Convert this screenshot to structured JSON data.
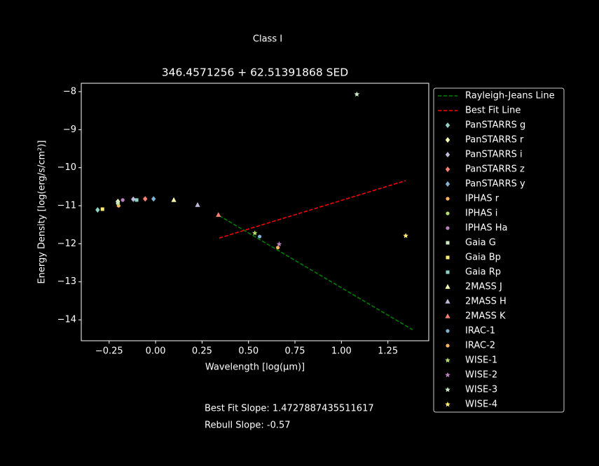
{
  "chart_data": {
    "type": "scatter",
    "suptitle": "Class I",
    "title": "346.4571256 + 62.51391868 SED",
    "x_label": "Wavelength [log(μm)]",
    "y_label": "Energy Density [log(erg/s/cm²)]",
    "annotations": [
      "Best Fit Slope: 1.4727887435511617",
      "Rebull Slope: -0.57"
    ],
    "xlim": [
      -0.4,
      1.47
    ],
    "ylim": [
      -14.55,
      -7.78
    ],
    "xticks": [
      {
        "value": -0.25,
        "label": "−0.25"
      },
      {
        "value": 0,
        "label": "0.00"
      },
      {
        "value": 0.25,
        "label": "0.25"
      },
      {
        "value": 0.5,
        "label": "0.50"
      },
      {
        "value": 0.75,
        "label": "0.75"
      },
      {
        "value": 1,
        "label": "1.00"
      },
      {
        "value": 1.25,
        "label": "1.25"
      }
    ],
    "yticks": [
      {
        "value": -14,
        "label": "−14"
      },
      {
        "value": -13,
        "label": "−13"
      },
      {
        "value": -12,
        "label": "−12"
      },
      {
        "value": -11,
        "label": "−11"
      },
      {
        "value": -10,
        "label": "−10"
      },
      {
        "value": -9,
        "label": "−9"
      },
      {
        "value": -8,
        "label": "−8"
      }
    ],
    "legend": "outside-right",
    "series": [
      {
        "name": "Rayleigh-Jeans Line",
        "color": "#008000",
        "style": "dashed",
        "x": [
          0.342,
          1.383
        ],
        "values": [
          -11.26,
          -14.26
        ]
      },
      {
        "name": "Best Fit Line",
        "color": "#ff0000",
        "style": "dashed",
        "x": [
          0.342,
          1.346
        ],
        "values": [
          -11.85,
          -10.34
        ]
      },
      {
        "name": "PanSTARRS g",
        "color": "#8dd3c7",
        "marker": "diamond",
        "x": [
          -0.312
        ],
        "values": [
          -11.11
        ]
      },
      {
        "name": "PanSTARRS r",
        "color": "#ffffb3",
        "marker": "diamond",
        "x": [
          -0.203
        ],
        "values": [
          -10.89
        ]
      },
      {
        "name": "PanSTARRS i",
        "color": "#bebada",
        "marker": "diamond",
        "x": [
          -0.12
        ],
        "values": [
          -10.83
        ]
      },
      {
        "name": "PanSTARRS z",
        "color": "#fb8072",
        "marker": "diamond",
        "x": [
          -0.056
        ],
        "values": [
          -10.82
        ]
      },
      {
        "name": "PanSTARRS y",
        "color": "#80b1d3",
        "marker": "diamond",
        "x": [
          -0.011
        ],
        "values": [
          -10.82
        ]
      },
      {
        "name": "IPHAS r",
        "color": "#fdb462",
        "marker": "circle",
        "x": [
          -0.199
        ],
        "values": [
          -11.0
        ]
      },
      {
        "name": "IPHAS i",
        "color": "#b3de69",
        "marker": "circle",
        "x": [
          -0.203
        ],
        "values": [
          -10.94
        ]
      },
      {
        "name": "IPHAS Ha",
        "color": "#bc80bd",
        "marker": "circle",
        "x": [
          -0.177
        ],
        "values": [
          -10.85
        ]
      },
      {
        "name": "Gaia G",
        "color": "#ccebc5",
        "marker": "square",
        "x": [
          -0.203
        ],
        "values": [
          -10.91
        ]
      },
      {
        "name": "Gaia Bp",
        "color": "#ffed6f",
        "marker": "square",
        "x": [
          -0.286
        ],
        "values": [
          -11.09
        ]
      },
      {
        "name": "Gaia Rp",
        "color": "#8dd3c7",
        "marker": "square",
        "x": [
          -0.102
        ],
        "values": [
          -10.85
        ]
      },
      {
        "name": "2MASS J",
        "color": "#ffffb3",
        "marker": "triangle",
        "x": [
          0.098
        ],
        "values": [
          -10.85
        ]
      },
      {
        "name": "2MASS H",
        "color": "#bebada",
        "marker": "triangle",
        "x": [
          0.226
        ],
        "values": [
          -10.98
        ]
      },
      {
        "name": "2MASS K",
        "color": "#fb8072",
        "marker": "triangle",
        "x": [
          0.338
        ],
        "values": [
          -11.24
        ]
      },
      {
        "name": "IRAC-1",
        "color": "#80b1d3",
        "marker": "circle",
        "x": [
          0.56
        ],
        "values": [
          -11.81
        ]
      },
      {
        "name": "IRAC-2",
        "color": "#fdb462",
        "marker": "circle",
        "x": [
          0.658
        ],
        "values": [
          -12.1
        ]
      },
      {
        "name": "WISE-1",
        "color": "#b3de69",
        "marker": "star",
        "x": [
          0.534
        ],
        "values": [
          -11.72
        ]
      },
      {
        "name": "WISE-2",
        "color": "#bc80bd",
        "marker": "star",
        "x": [
          0.665
        ],
        "values": [
          -12.01
        ]
      },
      {
        "name": "WISE-3",
        "color": "#ccebc5",
        "marker": "star",
        "x": [
          1.083
        ],
        "values": [
          -8.07
        ]
      },
      {
        "name": "WISE-4",
        "color": "#ffed6f",
        "marker": "star",
        "x": [
          1.346
        ],
        "values": [
          -11.79
        ]
      }
    ]
  }
}
